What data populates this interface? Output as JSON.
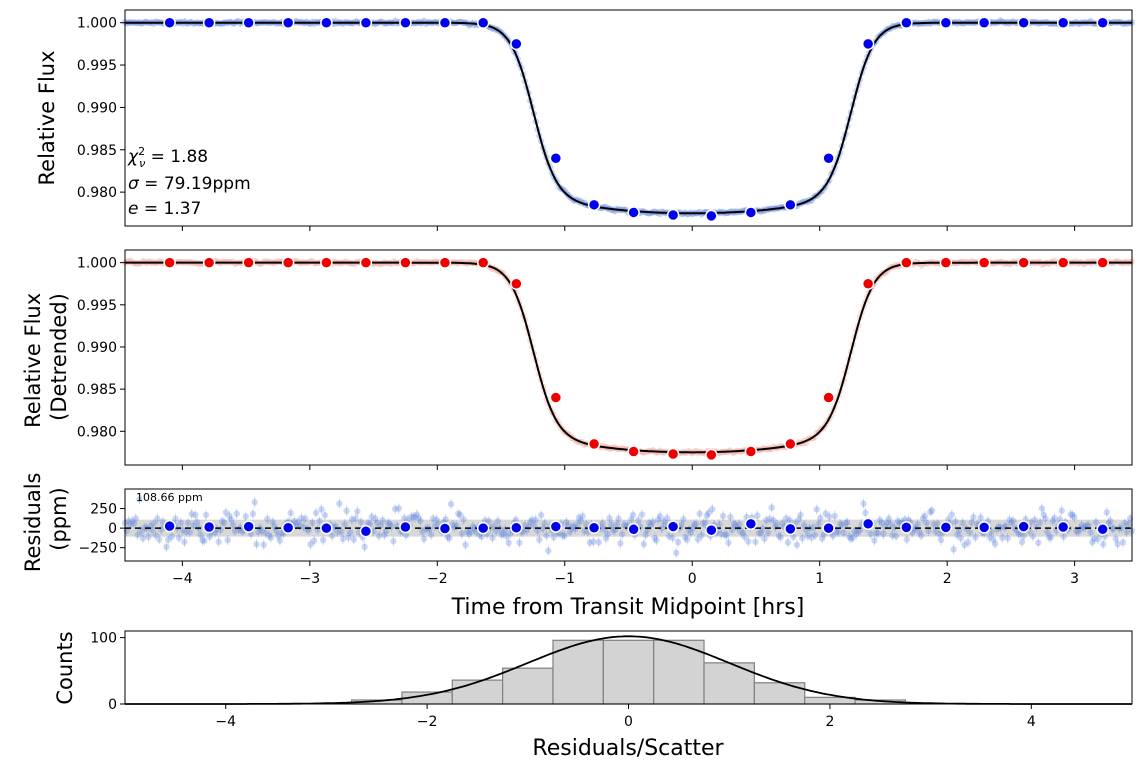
{
  "chart_data": [
    {
      "type": "line",
      "panel": "raw-lightcurve",
      "ylabel": "Relative Flux",
      "ylim": [
        0.976,
        1.0015
      ],
      "xlim": [
        -4.45,
        3.45
      ],
      "yticks": [
        0.98,
        0.985,
        0.99,
        0.995,
        1.0
      ],
      "ytick_labels": [
        "0.980",
        "0.985",
        "0.990",
        "0.995",
        "1.000"
      ],
      "annotations": [
        "χ²ᵥ = 1.88",
        "σ = 79.19ppm",
        "e = 1.37"
      ],
      "binned": {
        "x": [
          -4.1,
          -3.79,
          -3.48,
          -3.17,
          -2.87,
          -2.56,
          -2.25,
          -1.94,
          -1.64,
          -1.38,
          -1.07,
          -0.77,
          -0.46,
          -0.15,
          0.15,
          0.46,
          0.77,
          1.07,
          1.38,
          1.68,
          1.99,
          2.29,
          2.6,
          2.91,
          3.22
        ],
        "y": [
          1.0,
          1.0,
          1.0,
          1.0,
          1.0,
          1.0,
          1.0,
          1.0,
          1.0,
          0.9975,
          0.984,
          0.9785,
          0.9776,
          0.9773,
          0.9772,
          0.9776,
          0.9785,
          0.984,
          0.9975,
          1.0,
          1.0,
          1.0,
          1.0,
          1.0,
          1.0
        ],
        "color": "#0000ee"
      },
      "raw_color": "#6a8ce0",
      "model_color": "#000000"
    },
    {
      "type": "line",
      "panel": "detrended-lightcurve",
      "ylabel": "Relative Flux\n(Detrended)",
      "ylabel_lines": [
        "Relative Flux",
        "(Detrended)"
      ],
      "ylim": [
        0.976,
        1.0015
      ],
      "xlim": [
        -4.45,
        3.45
      ],
      "yticks": [
        0.98,
        0.985,
        0.99,
        0.995,
        1.0
      ],
      "ytick_labels": [
        "0.980",
        "0.985",
        "0.990",
        "0.995",
        "1.000"
      ],
      "binned": {
        "x": [
          -4.1,
          -3.79,
          -3.48,
          -3.17,
          -2.87,
          -2.56,
          -2.25,
          -1.94,
          -1.64,
          -1.38,
          -1.07,
          -0.77,
          -0.46,
          -0.15,
          0.15,
          0.46,
          0.77,
          1.07,
          1.38,
          1.68,
          1.99,
          2.29,
          2.6,
          2.91,
          3.22
        ],
        "y": [
          1.0,
          1.0,
          1.0,
          1.0,
          1.0,
          1.0,
          1.0,
          1.0,
          1.0,
          0.9975,
          0.984,
          0.9785,
          0.9776,
          0.9773,
          0.9772,
          0.9776,
          0.9785,
          0.984,
          0.9975,
          1.0,
          1.0,
          1.0,
          1.0,
          1.0,
          1.0
        ],
        "color": "#ee0000"
      },
      "raw_color": "#f0a8a0",
      "model_color": "#000000"
    },
    {
      "type": "scatter",
      "panel": "residuals",
      "ylabel_lines": [
        "Residuals",
        "(ppm)"
      ],
      "xlabel": "Time from Transit Midpoint [hrs]",
      "xlim": [
        -4.45,
        3.45
      ],
      "ylim": [
        -420,
        500
      ],
      "yticks": [
        -250,
        0,
        250
      ],
      "ytick_labels": [
        "−250",
        "0",
        "250"
      ],
      "xticks": [
        -4,
        -3,
        -2,
        -1,
        0,
        1,
        2,
        3
      ],
      "xtick_labels": [
        "−4",
        "−3",
        "−2",
        "−1",
        "0",
        "1",
        "2",
        "3"
      ],
      "scatter_label": "108.66 ppm",
      "band_ppm": 108.66,
      "binned": {
        "x": [
          -4.1,
          -3.79,
          -3.48,
          -3.17,
          -2.87,
          -2.56,
          -2.25,
          -1.94,
          -1.64,
          -1.38,
          -1.07,
          -0.77,
          -0.46,
          -0.15,
          0.15,
          0.46,
          0.77,
          1.07,
          1.38,
          1.68,
          1.99,
          2.29,
          2.6,
          2.91,
          3.22
        ],
        "y": [
          25,
          15,
          20,
          5,
          0,
          -40,
          15,
          -5,
          0,
          5,
          20,
          5,
          -15,
          20,
          -25,
          55,
          -10,
          0,
          55,
          10,
          10,
          10,
          20,
          15,
          -15
        ],
        "color": "#0000ee"
      },
      "raw_color": "#6a8ce0"
    },
    {
      "type": "bar",
      "panel": "residual-histogram",
      "xlabel": "Residuals/Scatter",
      "ylabel": "Counts",
      "xlim": [
        -5,
        5
      ],
      "ylim": [
        0,
        110
      ],
      "xticks": [
        -4,
        -2,
        0,
        2,
        4
      ],
      "xtick_labels": [
        "−4",
        "−2",
        "0",
        "2",
        "4"
      ],
      "yticks": [
        0,
        100
      ],
      "ytick_labels": [
        "0",
        "100"
      ],
      "bin_edges": [
        -2.75,
        -2.25,
        -1.75,
        -1.25,
        -0.75,
        -0.25,
        0.25,
        0.75,
        1.25,
        1.75,
        2.25,
        2.75
      ],
      "counts": [
        6,
        18,
        36,
        54,
        96,
        96,
        96,
        62,
        32,
        10,
        6
      ],
      "gaussian_peak": 102,
      "bar_color": "#d3d3d3",
      "edge_color": "#808080"
    }
  ]
}
